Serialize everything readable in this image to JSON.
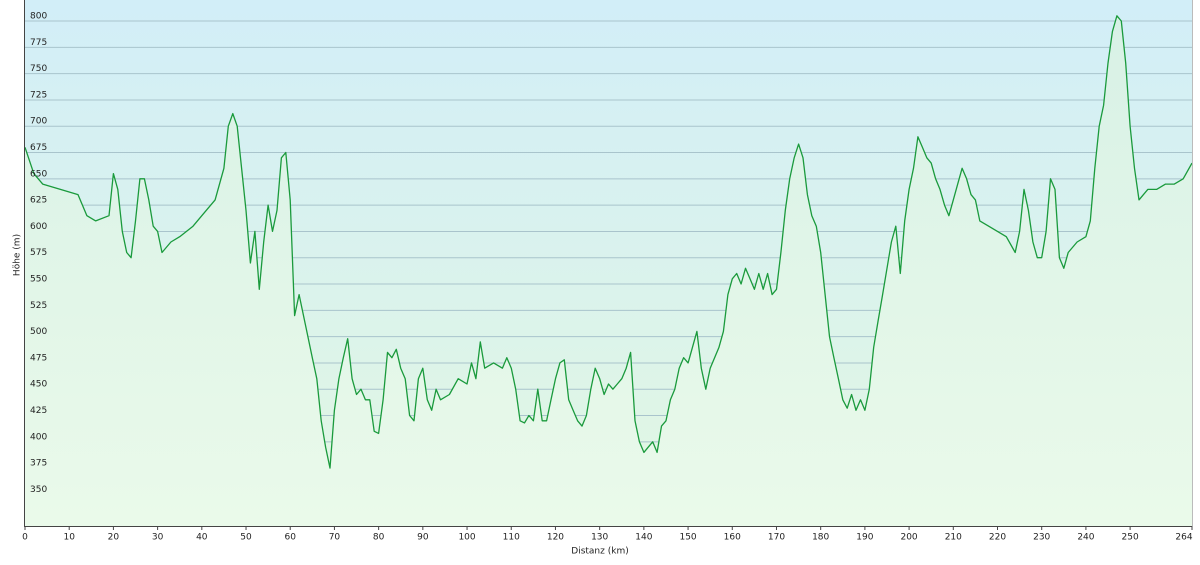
{
  "chart_data": {
    "type": "line",
    "xlabel": "Distanz  (km)",
    "ylabel": "Höhe (m)",
    "x": [
      0,
      2,
      4,
      8,
      12,
      14,
      16,
      19,
      20,
      21,
      22,
      23,
      24,
      25,
      26,
      27,
      28,
      29,
      30,
      31,
      33,
      35,
      38,
      40,
      43,
      45,
      46,
      47,
      48,
      49,
      50,
      51,
      52,
      53,
      54,
      55,
      56,
      57,
      58,
      59,
      60,
      61,
      62,
      63,
      64,
      65,
      66,
      67,
      68,
      69,
      70,
      71,
      72,
      73,
      74,
      75,
      76,
      77,
      78,
      79,
      80,
      81,
      82,
      83,
      84,
      85,
      86,
      87,
      88,
      89,
      90,
      91,
      92,
      93,
      94,
      96,
      98,
      100,
      101,
      102,
      103,
      104,
      106,
      108,
      109,
      110,
      111,
      112,
      113,
      114,
      115,
      116,
      117,
      118,
      119,
      120,
      121,
      122,
      123,
      124,
      125,
      126,
      127,
      128,
      129,
      130,
      131,
      132,
      133,
      134,
      135,
      136,
      137,
      138,
      139,
      140,
      141,
      142,
      143,
      144,
      145,
      146,
      147,
      148,
      149,
      150,
      151,
      152,
      153,
      154,
      155,
      156,
      157,
      158,
      159,
      160,
      161,
      162,
      163,
      164,
      165,
      166,
      167,
      168,
      169,
      170,
      171,
      172,
      173,
      174,
      175,
      176,
      177,
      178,
      179,
      180,
      181,
      182,
      183,
      184,
      185,
      186,
      187,
      188,
      189,
      190,
      191,
      192,
      193,
      194,
      195,
      196,
      197,
      198,
      199,
      200,
      201,
      202,
      203,
      204,
      205,
      206,
      207,
      208,
      209,
      210,
      211,
      212,
      213,
      214,
      215,
      216,
      218,
      220,
      222,
      224,
      225,
      226,
      227,
      228,
      229,
      230,
      231,
      232,
      233,
      234,
      235,
      236,
      238,
      240,
      241,
      242,
      243,
      244,
      245,
      246,
      247,
      248,
      249,
      250,
      251,
      252,
      254,
      256,
      258,
      260,
      262,
      264
    ],
    "series": [
      {
        "name": "Höhe",
        "color": "#1a9a3c",
        "values": [
          680,
          655,
          645,
          640,
          635,
          615,
          610,
          615,
          655,
          640,
          600,
          580,
          575,
          610,
          650,
          650,
          630,
          605,
          600,
          580,
          590,
          595,
          605,
          615,
          630,
          660,
          700,
          712,
          700,
          660,
          620,
          570,
          600,
          545,
          590,
          625,
          600,
          620,
          670,
          675,
          630,
          520,
          540,
          520,
          500,
          480,
          460,
          420,
          395,
          375,
          430,
          460,
          480,
          498,
          460,
          445,
          450,
          440,
          440,
          410,
          408,
          440,
          485,
          480,
          488,
          470,
          460,
          425,
          420,
          460,
          470,
          440,
          430,
          450,
          440,
          445,
          460,
          455,
          475,
          460,
          495,
          470,
          475,
          470,
          480,
          470,
          450,
          420,
          418,
          425,
          420,
          450,
          420,
          420,
          440,
          460,
          475,
          478,
          440,
          430,
          420,
          415,
          425,
          450,
          470,
          460,
          445,
          455,
          450,
          455,
          460,
          470,
          485,
          420,
          400,
          390,
          395,
          400,
          390,
          415,
          420,
          440,
          450,
          470,
          480,
          475,
          490,
          505,
          470,
          450,
          470,
          480,
          490,
          505,
          540,
          555,
          560,
          550,
          565,
          555,
          545,
          560,
          545,
          560,
          540,
          545,
          580,
          620,
          650,
          670,
          683,
          670,
          635,
          615,
          605,
          580,
          540,
          500,
          480,
          460,
          440,
          432,
          445,
          430,
          440,
          430,
          450,
          490,
          515,
          540,
          565,
          590,
          605,
          560,
          610,
          640,
          660,
          690,
          680,
          670,
          665,
          650,
          640,
          625,
          615,
          630,
          645,
          660,
          650,
          635,
          630,
          610,
          605,
          600,
          595,
          580,
          600,
          640,
          620,
          590,
          575,
          575,
          600,
          650,
          640,
          575,
          565,
          580,
          590,
          595,
          610,
          660,
          700,
          720,
          760,
          790,
          805,
          800,
          760,
          700,
          660,
          630,
          640,
          640,
          645,
          645,
          650,
          665
        ]
      }
    ],
    "xlim": [
      0,
      264
    ],
    "ylim": [
      320,
      820
    ],
    "xticks": [
      0,
      10,
      20,
      30,
      40,
      50,
      60,
      70,
      80,
      90,
      100,
      110,
      120,
      130,
      140,
      150,
      160,
      170,
      180,
      190,
      200,
      210,
      220,
      230,
      240,
      250,
      264
    ],
    "yticks": [
      350,
      375,
      400,
      425,
      450,
      475,
      500,
      525,
      550,
      575,
      600,
      625,
      650,
      675,
      700,
      725,
      750,
      775,
      800
    ],
    "grid": true
  }
}
